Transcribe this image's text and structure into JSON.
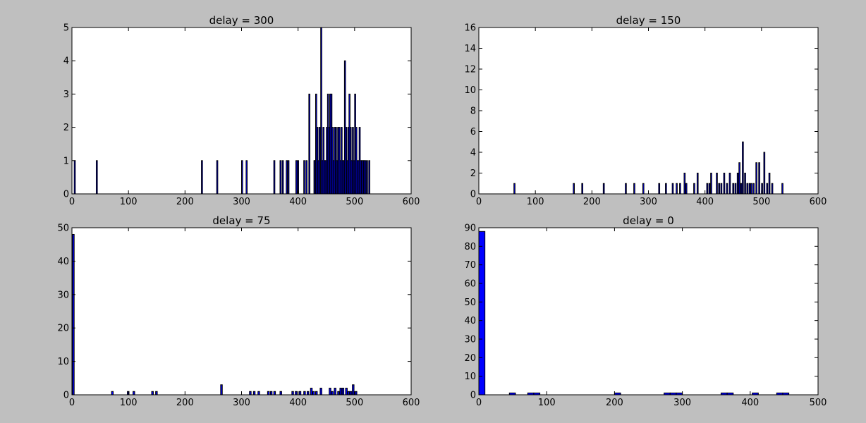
{
  "chart_data": [
    {
      "type": "bar",
      "title": "delay = 300",
      "xlabel": "",
      "ylabel": "",
      "xlim": [
        0,
        600
      ],
      "ylim": [
        0,
        5
      ],
      "xticks": [
        0,
        100,
        200,
        300,
        400,
        500,
        600
      ],
      "yticks": [
        0,
        1,
        2,
        3,
        4,
        5
      ],
      "bar_width": 2,
      "bar_color": "#0000ff",
      "grid": false,
      "x": [
        4,
        43,
        229,
        256,
        300,
        308,
        357,
        368,
        372,
        379,
        382,
        396,
        399,
        410,
        414,
        419,
        428,
        429,
        431,
        433,
        435,
        437,
        440,
        442,
        444,
        446,
        448,
        450,
        452,
        454,
        456,
        458,
        460,
        462,
        464,
        466,
        468,
        470,
        472,
        474,
        476,
        478,
        480,
        482,
        484,
        486,
        488,
        490,
        492,
        494,
        496,
        498,
        500,
        502,
        504,
        506,
        508,
        510,
        512,
        514,
        516,
        518,
        521,
        525
      ],
      "values": [
        1,
        1,
        1,
        1,
        1,
        1,
        1,
        1,
        1,
        1,
        1,
        1,
        1,
        1,
        1,
        3,
        1,
        1,
        3,
        2,
        1,
        2,
        5,
        1,
        2,
        1,
        1,
        2,
        3,
        2,
        3,
        3,
        2,
        1,
        2,
        2,
        1,
        2,
        2,
        1,
        2,
        1,
        1,
        4,
        2,
        1,
        2,
        3,
        2,
        1,
        2,
        1,
        3,
        2,
        1,
        1,
        2,
        1,
        1,
        1,
        1,
        1,
        1,
        1
      ]
    },
    {
      "type": "bar",
      "title": "delay = 150",
      "xlabel": "",
      "ylabel": "",
      "xlim": [
        0,
        600
      ],
      "ylim": [
        0,
        16
      ],
      "xticks": [
        0,
        100,
        200,
        300,
        400,
        500,
        600
      ],
      "yticks": [
        0,
        2,
        4,
        6,
        8,
        10,
        12,
        14,
        16
      ],
      "bar_width": 2,
      "bar_color": "#0000ff",
      "grid": false,
      "x": [
        62,
        167,
        182,
        220,
        259,
        274,
        290,
        318,
        330,
        342,
        349,
        355,
        363,
        366,
        380,
        386,
        403,
        407,
        410,
        420,
        424,
        428,
        433,
        438,
        443,
        449,
        453,
        457,
        460,
        463,
        466,
        470,
        474,
        478,
        481,
        485,
        490,
        495,
        500,
        504,
        509,
        513,
        518,
        536
      ],
      "values": [
        1,
        1,
        1,
        1,
        1,
        1,
        1,
        1,
        1,
        1,
        1,
        1,
        2,
        1,
        1,
        2,
        1,
        1,
        2,
        2,
        1,
        1,
        2,
        1,
        2,
        1,
        1,
        2,
        3,
        1,
        5,
        2,
        1,
        1,
        1,
        1,
        3,
        3,
        1,
        4,
        1,
        2,
        1,
        1
      ]
    },
    {
      "type": "bar",
      "title": "delay = 75",
      "xlabel": "",
      "ylabel": "",
      "xlim": [
        0,
        600
      ],
      "ylim": [
        0,
        50
      ],
      "xticks": [
        0,
        100,
        200,
        300,
        400,
        500,
        600
      ],
      "yticks": [
        0,
        10,
        20,
        30,
        40,
        50
      ],
      "bar_width": 3,
      "bar_color": "#0000ff",
      "grid": false,
      "x": [
        1,
        70,
        98,
        108,
        141,
        148,
        263,
        314,
        321,
        329,
        346,
        351,
        357,
        368,
        389,
        395,
        402,
        410,
        416,
        422,
        426,
        431,
        439,
        455,
        459,
        464,
        470,
        474,
        478,
        484,
        488,
        492,
        496,
        501
      ],
      "values": [
        48,
        1,
        1,
        1,
        1,
        1,
        3,
        1,
        1,
        1,
        1,
        1,
        1,
        1,
        1,
        1,
        1,
        1,
        1,
        2,
        1,
        1,
        2,
        2,
        1,
        2,
        1,
        2,
        2,
        2,
        1,
        1,
        3,
        1
      ]
    },
    {
      "type": "bar",
      "title": "delay = 0",
      "xlabel": "",
      "ylabel": "",
      "xlim": [
        0,
        500
      ],
      "ylim": [
        0,
        90
      ],
      "xticks": [
        0,
        100,
        200,
        300,
        400,
        500
      ],
      "yticks": [
        0,
        10,
        20,
        30,
        40,
        50,
        60,
        70,
        80,
        90
      ],
      "bar_width": 9,
      "bar_color": "#0000ff",
      "grid": false,
      "x": [
        0,
        45,
        72,
        81,
        200,
        273,
        282,
        291,
        357,
        366,
        403,
        439,
        448
      ],
      "values": [
        88,
        1,
        1,
        1,
        1,
        1,
        1,
        1,
        1,
        1,
        1,
        1,
        1
      ]
    }
  ]
}
